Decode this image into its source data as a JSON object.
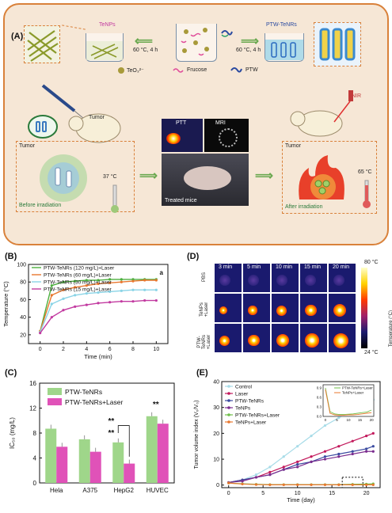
{
  "panelA": {
    "label": "(A)",
    "tenps_label": "TeNPs",
    "ptw_label": "PTW-TeNRs",
    "cond_left": "60 °C, 4 h",
    "cond_right": "60 °C, 4 h",
    "legend": [
      "TeO₃²⁻",
      "Frucose",
      "PTW"
    ],
    "tumor_left": "Tumor",
    "tumor_right": "Tumor",
    "temp_before": "37 °C",
    "temp_after": "65 °C",
    "before": "Before irradiation",
    "after": "After irradiation",
    "ptt": "PTT",
    "mri": "MRI",
    "treated": "Treated mice",
    "nir": "NIR"
  },
  "panelB": {
    "label": "(B)",
    "corner": "a",
    "xlabel": "Time (min)",
    "ylabel": "Temperature (°C)"
  },
  "panelC": {
    "label": "(C)",
    "ylabel": "IC₅₀ (mg/L)"
  },
  "panelD": {
    "label": "(D)",
    "times": [
      "3 min",
      "5 min",
      "10 min",
      "15 min",
      "20 min"
    ],
    "rows": [
      "PBS",
      "TeNPs +Laser",
      "PTW-TeNRs +Laser"
    ],
    "scale_max": "80 °C",
    "scale_min": "24 °C",
    "scale_title": "Temperature (°C)"
  },
  "panelE": {
    "label": "(E)",
    "xlabel": "Time (day)",
    "ylabel": "Tumor volume index (V₀/V₀)"
  },
  "chart_data": [
    {
      "type": "line",
      "id": "B",
      "xlabel": "Time (min)",
      "ylabel": "Temperature (°C)",
      "xlim": [
        -1,
        11
      ],
      "ylim": [
        10,
        100
      ],
      "xticks": [
        0,
        2,
        4,
        6,
        8,
        10
      ],
      "yticks": [
        20,
        40,
        60,
        80,
        100
      ],
      "x": [
        0,
        1,
        2,
        3,
        4,
        5,
        6,
        7,
        8,
        9,
        10
      ],
      "series": [
        {
          "name": "PTW-TeNRs (120 mg/L)+Laser",
          "color": "#4caf3e",
          "values": [
            24,
            76,
            80,
            81,
            82,
            82,
            83,
            83,
            83,
            83,
            83
          ]
        },
        {
          "name": "PTW-TeNRs (60 mg/L)+Laser",
          "color": "#e8772e",
          "values": [
            24,
            65,
            71,
            74,
            76,
            78,
            79,
            80,
            81,
            82,
            82
          ]
        },
        {
          "name": "PTW-TeNRs (30 mg/L)+Laser",
          "color": "#8ad4e6",
          "values": [
            23,
            55,
            61,
            65,
            67,
            68,
            69,
            70,
            71,
            71,
            71
          ]
        },
        {
          "name": "PTW-TeNRs (15 mg/L)+Laser",
          "color": "#c23aa0",
          "values": [
            22,
            40,
            48,
            52,
            54,
            56,
            57,
            58,
            58,
            59,
            59
          ]
        }
      ]
    },
    {
      "type": "bar",
      "id": "C",
      "ylabel": "IC₅₀ (mg/L)",
      "categories": [
        "Hela",
        "A375",
        "HepG2",
        "HUVEC"
      ],
      "ylim": [
        0,
        16
      ],
      "yticks": [
        0,
        4,
        8,
        12,
        16
      ],
      "series": [
        {
          "name": "PTW-TeNRs",
          "color": "#9fd68a",
          "values": [
            8.7,
            7.0,
            6.5,
            10.7
          ]
        },
        {
          "name": "PTW-TeNRs+Laser",
          "color": "#e052b8",
          "values": [
            5.8,
            5.0,
            3.1,
            9.5
          ]
        }
      ],
      "annotations": [
        "**",
        "**",
        "**"
      ]
    },
    {
      "type": "line",
      "id": "E",
      "xlabel": "Time (day)",
      "ylabel": "Tumor volume index (V₀/V₀)",
      "xlim": [
        -1,
        22
      ],
      "ylim": [
        -1,
        40
      ],
      "xticks": [
        0,
        5,
        10,
        15,
        20
      ],
      "yticks": [
        0,
        10,
        20,
        30,
        40
      ],
      "x": [
        0,
        2,
        4,
        6,
        8,
        10,
        12,
        14,
        16,
        18,
        20,
        21
      ],
      "series": [
        {
          "name": "Control",
          "color": "#a8dce8",
          "values": [
            1,
            2,
            4,
            7,
            11,
            15,
            19,
            23,
            26,
            29,
            32,
            33
          ]
        },
        {
          "name": "Laser",
          "color": "#c2185b",
          "values": [
            1,
            2,
            3,
            5,
            7,
            9,
            11,
            13,
            15,
            17,
            19,
            20
          ]
        },
        {
          "name": "PTW-TeNRs",
          "color": "#3a4aa0",
          "values": [
            1,
            2,
            3,
            4,
            6,
            8,
            9,
            11,
            12,
            13,
            14,
            15
          ]
        },
        {
          "name": "TeNPs",
          "color": "#7b2c8e",
          "values": [
            1,
            1.5,
            3,
            4,
            6,
            7,
            9,
            10,
            11,
            12,
            13,
            13
          ]
        },
        {
          "name": "PTW-TeNRs+Laser",
          "color": "#6fbf4a",
          "values": [
            0.8,
            0.5,
            0.3,
            0.2,
            0.2,
            0.2,
            0.2,
            0.2,
            0.2,
            0.3,
            0.4,
            0.5
          ]
        },
        {
          "name": "TeNPs+Laser",
          "color": "#e8772e",
          "values": [
            0.8,
            0.4,
            0.2,
            0.1,
            0.1,
            0.1,
            0.1,
            0.1,
            0.1,
            0.1,
            0.1,
            0.1
          ]
        }
      ],
      "inset": {
        "xticks": [
          0,
          5,
          10,
          15,
          20
        ],
        "yticks": [
          0.0,
          0.3,
          0.6,
          0.9
        ],
        "ylim": [
          0,
          1
        ],
        "xlim": [
          -1,
          21
        ],
        "x": [
          0,
          2,
          4,
          6,
          8,
          10,
          12,
          14,
          16,
          18,
          20
        ],
        "series": [
          {
            "name": "PTW-TeNRs+Laser",
            "color": "#6fbf4a",
            "values": [
              0.9,
              0.15,
              0.08,
              0.06,
              0.06,
              0.07,
              0.08,
              0.1,
              0.12,
              0.14,
              0.2
            ]
          },
          {
            "name": "TeNPs+Laser",
            "color": "#e8772e",
            "values": [
              0.85,
              0.1,
              0.05,
              0.04,
              0.04,
              0.05,
              0.05,
              0.06,
              0.08,
              0.1,
              0.12
            ]
          }
        ]
      }
    }
  ]
}
